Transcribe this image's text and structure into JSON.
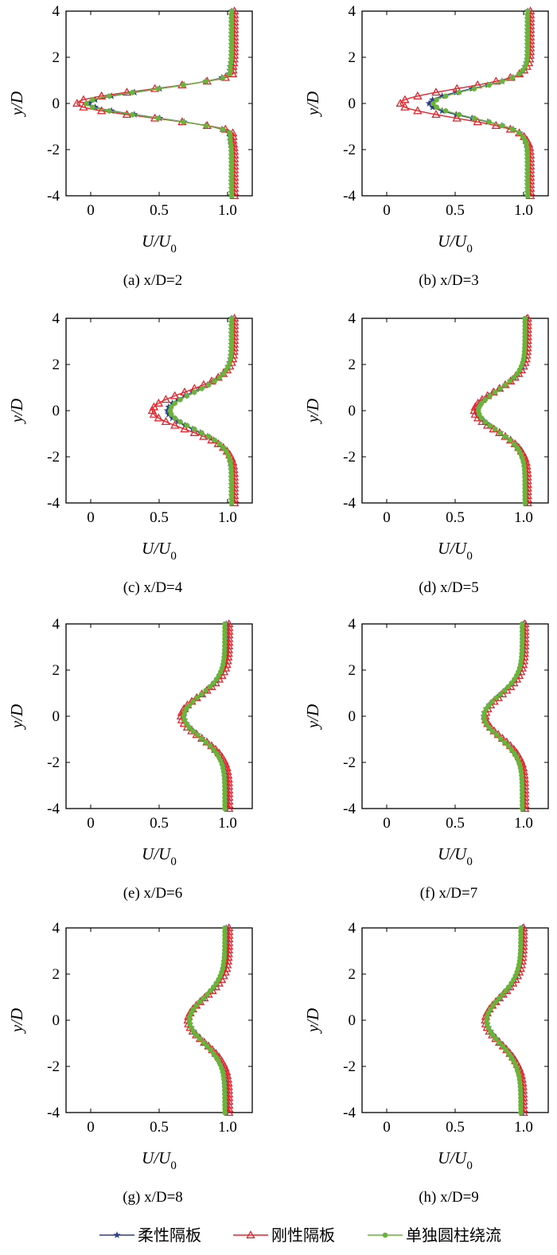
{
  "legend": [
    {
      "name": "柔性隔板",
      "color": "#2e3c8f",
      "marker": "star-icon"
    },
    {
      "name": "刚性隔板",
      "color": "#e8232a",
      "marker": "triangle-icon"
    },
    {
      "name": "单独圆柱绕流",
      "color": "#6ab43c",
      "marker": "circle-icon"
    }
  ],
  "chart_data": [
    {
      "type": "line",
      "caption": "(a) x/D=2",
      "xlabel": "U/U0",
      "ylabel": "y/D",
      "xlim": [
        -0.18,
        1.18
      ],
      "ylim": [
        -4,
        4
      ],
      "xticks": [
        "0",
        "0.5",
        "1.0"
      ],
      "yticks": [
        "-4",
        "-2",
        "0",
        "2",
        "4"
      ],
      "series": [
        {
          "name": "柔性隔板",
          "base": 1.03,
          "min": -0.01,
          "peak": 1.09,
          "width": 0.55,
          "n": 10
        },
        {
          "name": "刚性隔板",
          "base": 1.05,
          "min": -0.1,
          "peak": 1.13,
          "width": 0.55,
          "n": 10
        },
        {
          "name": "单独圆柱绕流",
          "base": 1.03,
          "min": -0.03,
          "peak": 1.1,
          "width": 0.55,
          "n": 10
        }
      ]
    },
    {
      "type": "line",
      "caption": "(b) x/D=3",
      "xlabel": "U/U0",
      "ylabel": "y/D",
      "xlim": [
        -0.18,
        1.18
      ],
      "ylim": [
        -4,
        4
      ],
      "xticks": [
        "0",
        "0.5",
        "1.0"
      ],
      "yticks": [
        "-4",
        "-2",
        "0",
        "2",
        "4"
      ],
      "series": [
        {
          "name": "柔性隔板",
          "base": 1.03,
          "min": 0.31,
          "peak": 1.05,
          "width": 0.6,
          "n": 10
        },
        {
          "name": "刚性隔板",
          "base": 1.05,
          "min": 0.1,
          "peak": 1.07,
          "width": 0.6,
          "n": 10
        },
        {
          "name": "单独圆柱绕流",
          "base": 1.03,
          "min": 0.34,
          "peak": 1.04,
          "width": 0.6,
          "n": 10
        }
      ]
    },
    {
      "type": "line",
      "caption": "(c) x/D=4",
      "xlabel": "U/U0",
      "ylabel": "y/D",
      "xlim": [
        -0.18,
        1.18
      ],
      "ylim": [
        -4,
        4
      ],
      "xticks": [
        "0",
        "0.5",
        "1.0"
      ],
      "yticks": [
        "-4",
        "-2",
        "0",
        "2",
        "4"
      ],
      "series": [
        {
          "name": "柔性隔板",
          "base": 1.03,
          "min": 0.56,
          "peak": 1.03,
          "width": 0.8,
          "n": 10
        },
        {
          "name": "刚性隔板",
          "base": 1.05,
          "min": 0.45,
          "peak": 1.05,
          "width": 0.8,
          "n": 10
        },
        {
          "name": "单独圆柱绕流",
          "base": 1.03,
          "min": 0.58,
          "peak": 1.03,
          "width": 0.8,
          "n": 10
        }
      ]
    },
    {
      "type": "line",
      "caption": "(d) x/D=5",
      "xlabel": "U/U0",
      "ylabel": "y/D",
      "xlim": [
        -0.18,
        1.18
      ],
      "ylim": [
        -4,
        4
      ],
      "xticks": [
        "0",
        "0.5",
        "1.0"
      ],
      "yticks": [
        "-4",
        "-2",
        "0",
        "2",
        "4"
      ],
      "series": [
        {
          "name": "柔性隔板",
          "base": 1.02,
          "min": 0.66,
          "peak": 1.02,
          "width": 0.85,
          "n": 10
        },
        {
          "name": "刚性隔板",
          "base": 1.03,
          "min": 0.64,
          "peak": 1.03,
          "width": 0.85,
          "n": 10
        },
        {
          "name": "单独圆柱绕流",
          "base": 1.01,
          "min": 0.67,
          "peak": 1.01,
          "width": 0.85,
          "n": 10
        }
      ]
    },
    {
      "type": "line",
      "caption": "(e) x/D=6",
      "xlabel": "U/U0",
      "ylabel": "y/D",
      "xlim": [
        -0.18,
        1.18
      ],
      "ylim": [
        -4,
        4
      ],
      "xticks": [
        "0",
        "0.5",
        "1.0"
      ],
      "yticks": [
        "-4",
        "-2",
        "0",
        "2",
        "4"
      ],
      "series": [
        {
          "name": "柔性隔板",
          "base": 0.99,
          "min": 0.68,
          "peak": 0.99,
          "width": 0.9,
          "n": 10
        },
        {
          "name": "刚性隔板",
          "base": 1.01,
          "min": 0.66,
          "peak": 1.01,
          "width": 0.9,
          "n": 10
        },
        {
          "name": "单独圆柱绕流",
          "base": 0.98,
          "min": 0.68,
          "peak": 0.98,
          "width": 0.9,
          "n": 10
        }
      ]
    },
    {
      "type": "line",
      "caption": "(f) x/D=7",
      "xlabel": "U/U0",
      "ylabel": "y/D",
      "xlim": [
        -0.18,
        1.18
      ],
      "ylim": [
        -4,
        4
      ],
      "xticks": [
        "0",
        "0.5",
        "1.0"
      ],
      "yticks": [
        "-4",
        "-2",
        "0",
        "2",
        "4"
      ],
      "series": [
        {
          "name": "柔性隔板",
          "base": 1.0,
          "min": 0.71,
          "peak": 1.0,
          "width": 0.9,
          "n": 10
        },
        {
          "name": "刚性隔板",
          "base": 1.01,
          "min": 0.72,
          "peak": 1.01,
          "width": 0.9,
          "n": 10
        },
        {
          "name": "单独圆柱绕流",
          "base": 0.99,
          "min": 0.71,
          "peak": 0.99,
          "width": 0.9,
          "n": 10
        }
      ]
    },
    {
      "type": "line",
      "caption": "(g) x/D=8",
      "xlabel": "U/U0",
      "ylabel": "y/D",
      "xlim": [
        -0.18,
        1.18
      ],
      "ylim": [
        -4,
        4
      ],
      "xticks": [
        "0",
        "0.5",
        "1.0"
      ],
      "yticks": [
        "-4",
        "-2",
        "0",
        "2",
        "4"
      ],
      "series": [
        {
          "name": "柔性隔板",
          "base": 0.99,
          "min": 0.72,
          "peak": 0.99,
          "width": 0.95,
          "n": 10
        },
        {
          "name": "刚性隔板",
          "base": 1.01,
          "min": 0.71,
          "peak": 1.01,
          "width": 0.95,
          "n": 10
        },
        {
          "name": "单独圆柱绕流",
          "base": 0.98,
          "min": 0.72,
          "peak": 0.98,
          "width": 0.95,
          "n": 10
        }
      ]
    },
    {
      "type": "line",
      "caption": "(h) x/D=9",
      "xlabel": "U/U0",
      "ylabel": "y/D",
      "xlim": [
        -0.18,
        1.18
      ],
      "ylim": [
        -4,
        4
      ],
      "xticks": [
        "0",
        "0.5",
        "1.0"
      ],
      "yticks": [
        "-4",
        "-2",
        "0",
        "2",
        "4"
      ],
      "series": [
        {
          "name": "柔性隔板",
          "base": 0.99,
          "min": 0.73,
          "peak": 0.99,
          "width": 1.0,
          "n": 10
        },
        {
          "name": "刚性隔板",
          "base": 1.0,
          "min": 0.72,
          "peak": 1.0,
          "width": 1.0,
          "n": 10
        },
        {
          "name": "单独圆柱绕流",
          "base": 0.98,
          "min": 0.73,
          "peak": 0.98,
          "width": 1.0,
          "n": 10
        }
      ]
    }
  ]
}
